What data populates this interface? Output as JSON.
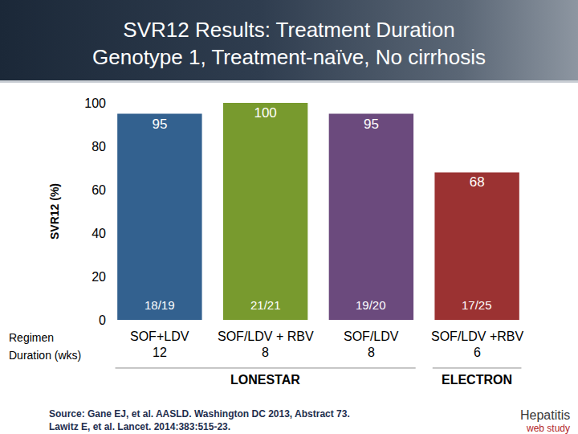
{
  "chart_data": {
    "type": "bar",
    "title": [
      "SVR12 Results: Treatment Duration",
      "Genotype 1, Treatment-naïve, No cirrhosis"
    ],
    "ylabel": "SVR12 (%)",
    "categories": [
      "SOF+LDV",
      "SOF/LDV + RBV",
      "SOF/LDV",
      "SOF/LDV +RBV"
    ],
    "durations": [
      12,
      8,
      8,
      6
    ],
    "row_labels": [
      "Regimen",
      "Duration (wks)"
    ],
    "values": [
      95,
      100,
      95,
      68
    ],
    "counts": [
      "18/19",
      "21/21",
      "19/20",
      "17/25"
    ],
    "studies": [
      "LONESTAR",
      "LONESTAR",
      "LONESTAR",
      "ELECTRON"
    ],
    "colors": [
      "#33618f",
      "#789a2e",
      "#6b4a7d",
      "#9b3232"
    ],
    "ylim": [
      0,
      100
    ],
    "yticks": [
      0,
      20,
      40,
      60,
      80,
      100
    ],
    "grid": false,
    "data_labels": true,
    "source": [
      "Source: Gane EJ, et al. AASLD. Washington DC 2013, Abstract 73.",
      "Lawitz E, et al. Lancet. 2014:383:515-23."
    ],
    "logo": [
      "Hepatitis",
      "web study"
    ]
  }
}
